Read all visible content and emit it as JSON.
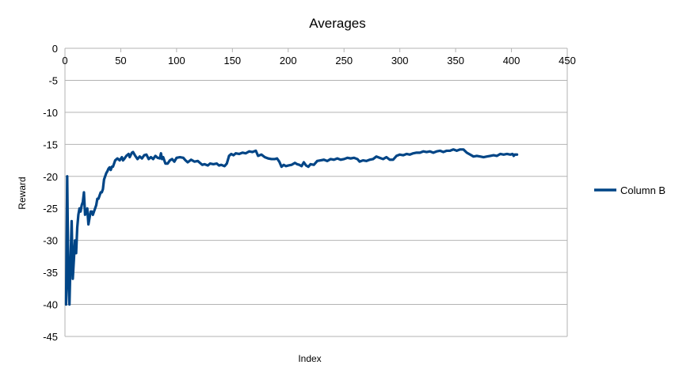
{
  "chart_data": {
    "type": "line",
    "title": "Averages",
    "xlabel": "Index",
    "ylabel": "Reward",
    "xlim": [
      0,
      450
    ],
    "ylim": [
      -45,
      0
    ],
    "x_ticks": [
      0,
      50,
      100,
      150,
      200,
      250,
      300,
      350,
      400,
      450
    ],
    "y_ticks": [
      0,
      -5,
      -10,
      -15,
      -20,
      -25,
      -30,
      -35,
      -40,
      -45
    ],
    "grid": true,
    "legend_position": "right",
    "series": [
      {
        "name": "Column B",
        "color": "#004586",
        "points": [
          [
            1,
            -40
          ],
          [
            2,
            -20
          ],
          [
            3,
            -36
          ],
          [
            4,
            -40
          ],
          [
            5,
            -33
          ],
          [
            6,
            -27
          ],
          [
            7,
            -36
          ],
          [
            8,
            -33
          ],
          [
            9,
            -30
          ],
          [
            10,
            -32
          ],
          [
            11,
            -28
          ],
          [
            12,
            -26
          ],
          [
            13,
            -25
          ],
          [
            14,
            -25.5
          ],
          [
            15,
            -24.5
          ],
          [
            16,
            -24
          ],
          [
            17,
            -22.5
          ],
          [
            18,
            -26
          ],
          [
            19,
            -25.5
          ],
          [
            20,
            -25
          ],
          [
            21,
            -27.5
          ],
          [
            22,
            -26.5
          ],
          [
            23,
            -25.5
          ],
          [
            24,
            -25.5
          ],
          [
            25,
            -26
          ],
          [
            26,
            -25.5
          ],
          [
            27,
            -25
          ],
          [
            28,
            -24.5
          ],
          [
            29,
            -23.5
          ],
          [
            30,
            -23.5
          ],
          [
            31,
            -23
          ],
          [
            32,
            -22.5
          ],
          [
            33,
            -22.5
          ],
          [
            34,
            -22
          ],
          [
            35,
            -20.5
          ],
          [
            36,
            -20
          ],
          [
            37,
            -19.5
          ],
          [
            38,
            -19.2
          ],
          [
            39,
            -18.8
          ],
          [
            40,
            -18.6
          ],
          [
            41,
            -19
          ],
          [
            42,
            -18.5
          ],
          [
            43,
            -18.5
          ],
          [
            44,
            -18
          ],
          [
            45,
            -17.5
          ],
          [
            47,
            -17.2
          ],
          [
            49,
            -17.5
          ],
          [
            51,
            -17.0
          ],
          [
            52,
            -17.5
          ],
          [
            53,
            -17.3
          ],
          [
            55,
            -16.8
          ],
          [
            57,
            -16.5
          ],
          [
            58,
            -17
          ],
          [
            60,
            -16.3
          ],
          [
            61,
            -16.2
          ],
          [
            63,
            -16.8
          ],
          [
            65,
            -17.3
          ],
          [
            67,
            -16.9
          ],
          [
            69,
            -17.2
          ],
          [
            71,
            -16.7
          ],
          [
            73,
            -16.6
          ],
          [
            75,
            -17.3
          ],
          [
            77,
            -17.0
          ],
          [
            79,
            -17.3
          ],
          [
            81,
            -16.8
          ],
          [
            83,
            -17.1
          ],
          [
            85,
            -17.2
          ],
          [
            86,
            -16.4
          ],
          [
            87,
            -17.3
          ],
          [
            88,
            -17.0
          ],
          [
            90,
            -18
          ],
          [
            92,
            -18
          ],
          [
            94,
            -17.5
          ],
          [
            96,
            -17.3
          ],
          [
            98,
            -17.7
          ],
          [
            100,
            -17.1
          ],
          [
            103,
            -17.0
          ],
          [
            106,
            -17.1
          ],
          [
            108,
            -17.5
          ],
          [
            110,
            -17.8
          ],
          [
            113,
            -17.4
          ],
          [
            116,
            -17.7
          ],
          [
            119,
            -17.6
          ],
          [
            121,
            -17.9
          ],
          [
            123,
            -18.2
          ],
          [
            125,
            -18.1
          ],
          [
            128,
            -18.3
          ],
          [
            130,
            -18.0
          ],
          [
            133,
            -18.1
          ],
          [
            136,
            -18.0
          ],
          [
            138,
            -18.3
          ],
          [
            140,
            -18.2
          ],
          [
            143,
            -18.4
          ],
          [
            145,
            -18.0
          ],
          [
            147,
            -16.8
          ],
          [
            149,
            -16.5
          ],
          [
            151,
            -16.7
          ],
          [
            153,
            -16.4
          ],
          [
            156,
            -16.5
          ],
          [
            159,
            -16.3
          ],
          [
            162,
            -16.4
          ],
          [
            165,
            -16.1
          ],
          [
            168,
            -16.2
          ],
          [
            171,
            -16.0
          ],
          [
            173,
            -16.8
          ],
          [
            176,
            -16.6
          ],
          [
            179,
            -17.0
          ],
          [
            182,
            -17.2
          ],
          [
            185,
            -17.3
          ],
          [
            188,
            -17.3
          ],
          [
            190,
            -17.2
          ],
          [
            192,
            -17.7
          ],
          [
            194,
            -18.5
          ],
          [
            196,
            -18.2
          ],
          [
            198,
            -18.4
          ],
          [
            200,
            -18.3
          ],
          [
            203,
            -18.2
          ],
          [
            206,
            -17.9
          ],
          [
            208,
            -18.1
          ],
          [
            210,
            -18.2
          ],
          [
            212,
            -18.4
          ],
          [
            214,
            -17.8
          ],
          [
            216,
            -18.3
          ],
          [
            218,
            -18.5
          ],
          [
            220,
            -18.1
          ],
          [
            223,
            -18.2
          ],
          [
            226,
            -17.6
          ],
          [
            229,
            -17.5
          ],
          [
            232,
            -17.4
          ],
          [
            235,
            -17.6
          ],
          [
            238,
            -17.3
          ],
          [
            241,
            -17.4
          ],
          [
            244,
            -17.2
          ],
          [
            247,
            -17.4
          ],
          [
            250,
            -17.3
          ],
          [
            253,
            -17.1
          ],
          [
            256,
            -17.2
          ],
          [
            259,
            -17.1
          ],
          [
            262,
            -17.3
          ],
          [
            264,
            -17.7
          ],
          [
            267,
            -17.5
          ],
          [
            270,
            -17.6
          ],
          [
            273,
            -17.4
          ],
          [
            276,
            -17.3
          ],
          [
            279,
            -16.9
          ],
          [
            282,
            -17.1
          ],
          [
            285,
            -17.3
          ],
          [
            288,
            -17.0
          ],
          [
            291,
            -17.4
          ],
          [
            294,
            -17.4
          ],
          [
            297,
            -16.8
          ],
          [
            300,
            -16.6
          ],
          [
            303,
            -16.7
          ],
          [
            306,
            -16.5
          ],
          [
            309,
            -16.6
          ],
          [
            312,
            -16.4
          ],
          [
            315,
            -16.3
          ],
          [
            318,
            -16.3
          ],
          [
            321,
            -16.1
          ],
          [
            324,
            -16.2
          ],
          [
            327,
            -16.1
          ],
          [
            330,
            -16.3
          ],
          [
            333,
            -16.1
          ],
          [
            336,
            -16.0
          ],
          [
            339,
            -16.2
          ],
          [
            342,
            -16.0
          ],
          [
            345,
            -16.0
          ],
          [
            348,
            -15.8
          ],
          [
            351,
            -16.0
          ],
          [
            354,
            -15.8
          ],
          [
            357,
            -15.8
          ],
          [
            360,
            -16.3
          ],
          [
            363,
            -16.6
          ],
          [
            366,
            -16.9
          ],
          [
            369,
            -16.8
          ],
          [
            372,
            -16.9
          ],
          [
            375,
            -17.0
          ],
          [
            378,
            -16.9
          ],
          [
            381,
            -16.8
          ],
          [
            384,
            -16.7
          ],
          [
            387,
            -16.8
          ],
          [
            390,
            -16.5
          ],
          [
            393,
            -16.6
          ],
          [
            396,
            -16.5
          ],
          [
            399,
            -16.6
          ],
          [
            401,
            -16.5
          ],
          [
            402,
            -16.8
          ],
          [
            403,
            -16.6
          ],
          [
            405,
            -16.6
          ]
        ]
      }
    ]
  }
}
